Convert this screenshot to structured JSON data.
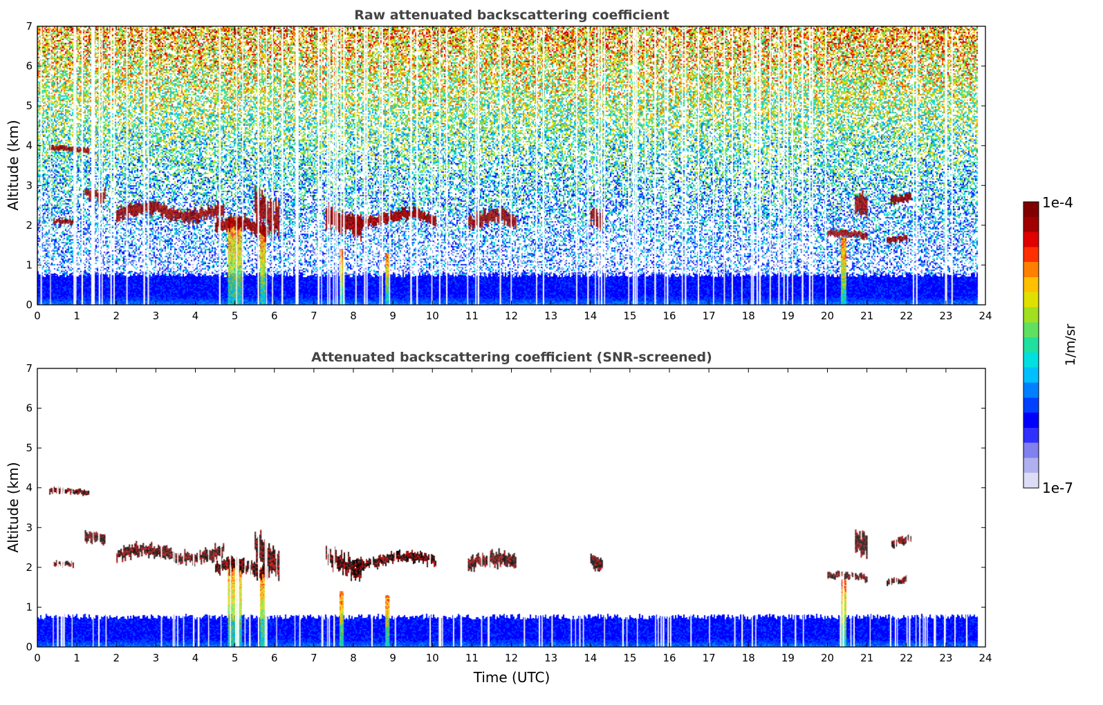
{
  "chart_data": [
    {
      "type": "heatmap",
      "title": "Raw attenuated backscattering coefficient",
      "ylabel": "Altitude (km)",
      "xlabel": "",
      "xlim": [
        0,
        24
      ],
      "ylim": [
        0,
        7
      ],
      "xticks": [
        "0",
        "1",
        "2",
        "3",
        "4",
        "5",
        "6",
        "7",
        "8",
        "9",
        "10",
        "11",
        "12",
        "13",
        "14",
        "15",
        "16",
        "17",
        "18",
        "19",
        "20",
        "21",
        "22",
        "23",
        "24"
      ],
      "yticks": [
        "0",
        "1",
        "2",
        "3",
        "4",
        "5",
        "6",
        "7"
      ],
      "data_end_time": 23.8,
      "boundary_layer_top_km": 0.75,
      "noise": "dense",
      "clouds": [
        {
          "t0": 0.3,
          "t1": 1.3,
          "z": 3.9,
          "w": 0.12
        },
        {
          "t0": 1.2,
          "t1": 1.7,
          "z": 2.85,
          "w": 0.25
        },
        {
          "t0": 0.4,
          "t1": 0.9,
          "z": 2.05,
          "w": 0.12
        },
        {
          "t0": 2.0,
          "t1": 4.7,
          "z": 2.35,
          "w": 0.3
        },
        {
          "t0": 4.5,
          "t1": 5.8,
          "z": 1.95,
          "w": 0.35
        },
        {
          "t0": 5.5,
          "t1": 6.1,
          "z": 2.5,
          "w": 0.8
        },
        {
          "t0": 7.3,
          "t1": 8.2,
          "z": 2.1,
          "w": 0.5
        },
        {
          "t0": 8.0,
          "t1": 10.1,
          "z": 2.2,
          "w": 0.25
        },
        {
          "t0": 10.9,
          "t1": 12.1,
          "z": 2.1,
          "w": 0.35
        },
        {
          "t0": 14.0,
          "t1": 14.3,
          "z": 2.1,
          "w": 0.4
        },
        {
          "t0": 20.0,
          "t1": 21.0,
          "z": 1.75,
          "w": 0.15
        },
        {
          "t0": 20.7,
          "t1": 21.0,
          "z": 2.5,
          "w": 0.6
        },
        {
          "t0": 21.5,
          "t1": 22.0,
          "z": 1.7,
          "w": 0.15
        },
        {
          "t0": 21.6,
          "t1": 22.1,
          "z": 2.7,
          "w": 0.2
        }
      ],
      "plumes": [
        {
          "t": 5.0,
          "w": 0.35,
          "top": 2.2
        },
        {
          "t": 5.7,
          "w": 0.12,
          "top": 2.0
        },
        {
          "t": 7.7,
          "w": 0.1,
          "top": 1.4
        },
        {
          "t": 8.85,
          "w": 0.08,
          "top": 1.3
        },
        {
          "t": 20.4,
          "w": 0.12,
          "top": 1.7
        }
      ]
    },
    {
      "type": "heatmap",
      "title": "Attenuated backscattering coefficient (SNR-screened)",
      "ylabel": "Altitude (km)",
      "xlabel": "Time (UTC)",
      "xlim": [
        0,
        24
      ],
      "ylim": [
        0,
        7
      ],
      "xticks": [
        "0",
        "1",
        "2",
        "3",
        "4",
        "5",
        "6",
        "7",
        "8",
        "9",
        "10",
        "11",
        "12",
        "13",
        "14",
        "15",
        "16",
        "17",
        "18",
        "19",
        "20",
        "21",
        "22",
        "23",
        "24"
      ],
      "yticks": [
        "0",
        "1",
        "2",
        "3",
        "4",
        "5",
        "6",
        "7"
      ],
      "data_end_time": 23.8,
      "boundary_layer_top_km": 0.75,
      "noise": "none"
    }
  ],
  "colorbar": {
    "label": "1/m/sr",
    "max_label": "1e-4",
    "min_label": "1e-7",
    "colors": [
      "#dcdcf5",
      "#b0b0ee",
      "#8080ee",
      "#3030ff",
      "#0000ff",
      "#0040ff",
      "#0080ff",
      "#00c0ff",
      "#00e0e0",
      "#20e0a0",
      "#60e060",
      "#a0e020",
      "#e0e000",
      "#ffc000",
      "#ff8000",
      "#ff3000",
      "#e00000",
      "#a00000",
      "#800000"
    ]
  }
}
